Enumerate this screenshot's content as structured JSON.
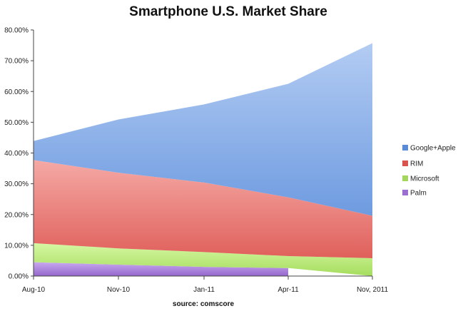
{
  "chart_data": {
    "type": "area",
    "title": "Smartphone U.S. Market Share",
    "source": "source: comscore",
    "categories": [
      "Aug-10",
      "Nov-10",
      "Jan-11",
      "Apr-11",
      "Nov, 2011"
    ],
    "ylim": [
      0,
      80
    ],
    "y_tick_labels": [
      "0.00%",
      "10.00%",
      "20.00%",
      "30.00%",
      "40.00%",
      "50.00%",
      "60.00%",
      "70.00%",
      "80.00%"
    ],
    "stacked": true,
    "grid": false,
    "legend_position": "right",
    "series": [
      {
        "name": "Palm",
        "color": "#b68fe0",
        "values": [
          4.5,
          3.7,
          3.0,
          2.6,
          null
        ]
      },
      {
        "name": "Microsoft",
        "color": "#c9f28a",
        "values": [
          6.2,
          5.3,
          4.8,
          3.9,
          5.8
        ]
      },
      {
        "name": "RIM",
        "color": "#f19a96",
        "values": [
          27.0,
          24.6,
          22.6,
          19.1,
          13.8
        ]
      },
      {
        "name": "Google+Apple",
        "color": "#a9c4ef",
        "values": [
          6.2,
          17.3,
          25.4,
          36.9,
          56.1
        ]
      }
    ],
    "legend_order": [
      "Google+Apple",
      "RIM",
      "Microsoft",
      "Palm"
    ],
    "legend_colors": {
      "Google+Apple": "#5b8ad6",
      "RIM": "#d9534f",
      "Microsoft": "#a4d65e",
      "Palm": "#9b6fcf"
    }
  }
}
